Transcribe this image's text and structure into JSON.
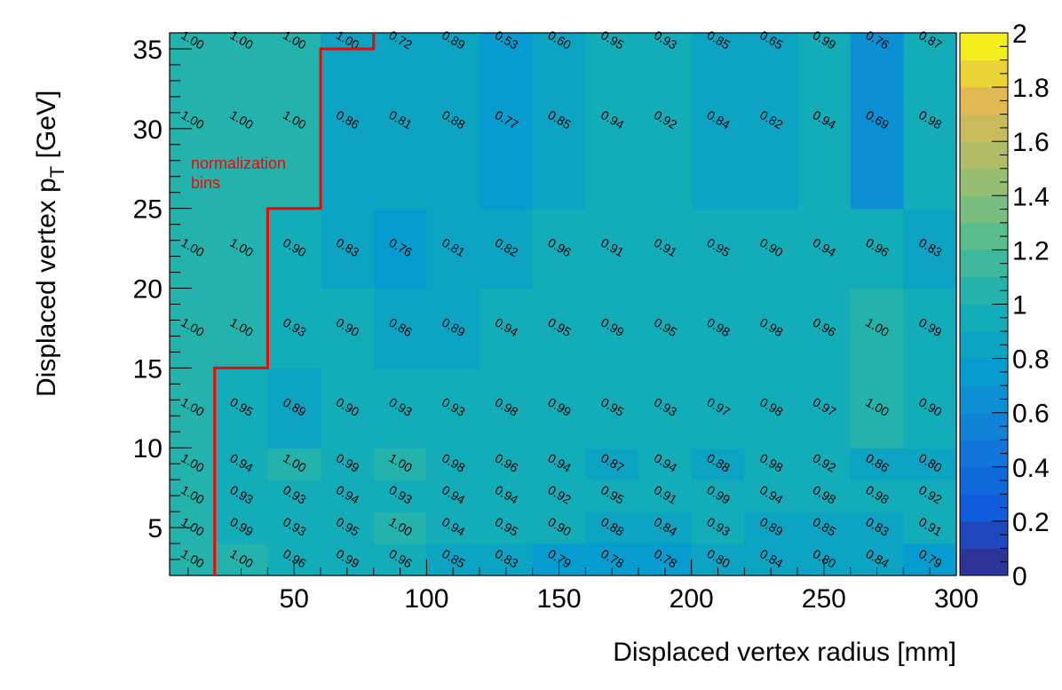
{
  "chart_data": {
    "type": "heatmap",
    "xlabel": "Displaced vertex radius [mm]",
    "ylabel_main": "Displaced vertex p",
    "ylabel_sub": "T",
    "ylabel_unit": " [GeV]",
    "xlim": [
      3,
      300
    ],
    "ylim": [
      2,
      36
    ],
    "x_ticks": [
      50,
      100,
      150,
      200,
      250,
      300
    ],
    "y_ticks": [
      5,
      10,
      15,
      20,
      25,
      30,
      35
    ],
    "x_edges": [
      3,
      20,
      40,
      60,
      80,
      100,
      120,
      140,
      160,
      180,
      200,
      220,
      240,
      260,
      280,
      300
    ],
    "y_edges": [
      2,
      4,
      6,
      8,
      10,
      15,
      20,
      25,
      36
    ],
    "values": [
      [
        1.0,
        1.0,
        0.96,
        0.99,
        0.96,
        0.85,
        0.83,
        0.79,
        0.78,
        0.78,
        0.8,
        0.84,
        0.8,
        0.84,
        0.79
      ],
      [
        1.0,
        0.99,
        0.93,
        0.95,
        1.0,
        0.94,
        0.95,
        0.9,
        0.88,
        0.84,
        0.93,
        0.89,
        0.85,
        0.83,
        0.91
      ],
      [
        1.0,
        0.93,
        0.93,
        0.94,
        0.93,
        0.94,
        0.94,
        0.92,
        0.95,
        0.91,
        0.99,
        0.94,
        0.98,
        0.98,
        0.92
      ],
      [
        1.0,
        0.94,
        1.0,
        0.99,
        1.0,
        0.98,
        0.96,
        0.94,
        0.87,
        0.94,
        0.88,
        0.98,
        0.92,
        0.86,
        0.8
      ],
      [
        1.0,
        0.95,
        0.89,
        0.9,
        0.93,
        0.93,
        0.98,
        0.99,
        0.95,
        0.93,
        0.97,
        0.98,
        0.97,
        1.0,
        0.9
      ],
      [
        1.0,
        1.0,
        0.93,
        0.9,
        0.86,
        0.89,
        0.94,
        0.95,
        0.99,
        0.95,
        0.98,
        0.98,
        0.96,
        1.0,
        0.99
      ],
      [
        1.0,
        1.0,
        0.9,
        0.83,
        0.76,
        0.81,
        0.82,
        0.96,
        0.91,
        0.91,
        0.95,
        0.9,
        0.94,
        0.96,
        0.83
      ],
      [
        1.0,
        1.0,
        1.0,
        0.86,
        0.81,
        0.88,
        0.77,
        0.85,
        0.94,
        0.92,
        0.84,
        0.82,
        0.94,
        0.69,
        0.98
      ]
    ],
    "top_row_labels": [
      "1.00",
      "1.00",
      "1.00",
      "1.00",
      "0.72",
      "0.89",
      "0.53",
      "0.60",
      "0.95",
      "0.93",
      "0.85",
      "0.65",
      "0.99",
      "0.76",
      "0.87"
    ],
    "colorbar": {
      "range": [
        0,
        2
      ],
      "ticks": [
        "0",
        "0.2",
        "0.4",
        "0.6",
        "0.8",
        "1",
        "1.2",
        "1.4",
        "1.6",
        "1.8",
        "2"
      ]
    },
    "annotation": {
      "line1": "normalization",
      "line2": "bins",
      "color": "#ff0000"
    },
    "boundary_path": [
      [
        20,
        2
      ],
      [
        20,
        15
      ],
      [
        40,
        15
      ],
      [
        40,
        25
      ],
      [
        60,
        25
      ],
      [
        60,
        35
      ],
      [
        80,
        35
      ],
      [
        80,
        36
      ]
    ]
  }
}
